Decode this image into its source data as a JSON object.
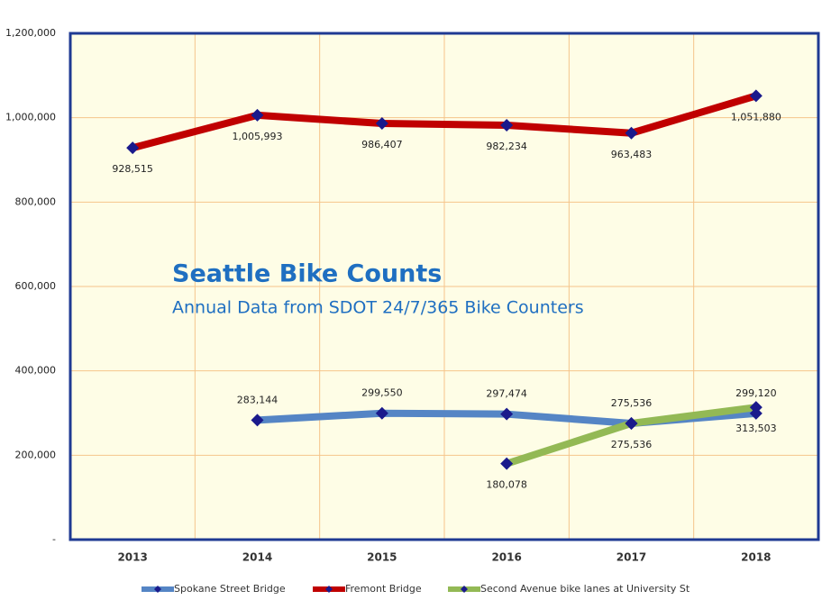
{
  "chart_data": {
    "type": "line",
    "title": "Seattle Bike Counts",
    "subtitle": "Annual Data from SDOT 24/7/365 Bike Counters",
    "categories": [
      "2013",
      "2014",
      "2015",
      "2016",
      "2017",
      "2018"
    ],
    "ylim": [
      0,
      1200000
    ],
    "yticks": [
      {
        "value": 0,
        "label": "-"
      },
      {
        "value": 200000,
        "label": "200,000"
      },
      {
        "value": 400000,
        "label": "400,000"
      },
      {
        "value": 600000,
        "label": "600,000"
      },
      {
        "value": 800000,
        "label": "800,000"
      },
      {
        "value": 1000000,
        "label": "1,000,000"
      },
      {
        "value": 1200000,
        "label": "1,200,000"
      }
    ],
    "grid": true,
    "legend": "bottom",
    "series": [
      {
        "name": "Spokane Street Bridge",
        "color": "#5585c5",
        "values": [
          null,
          283144,
          299550,
          297474,
          275536,
          299120
        ],
        "value_labels": [
          null,
          "283,144",
          "299,550",
          "297,474",
          "275,536",
          "299,120"
        ]
      },
      {
        "name": "Fremont Bridge",
        "color": "#c00000",
        "values": [
          928515,
          1005993,
          986407,
          982234,
          963483,
          1051880
        ],
        "value_labels": [
          "928,515",
          "1,005,993",
          "986,407",
          "982,234",
          "963,483",
          "1,051,880"
        ]
      },
      {
        "name": "Second Avenue bike lanes at University St",
        "color": "#93b955",
        "values": [
          null,
          null,
          null,
          180078,
          275536,
          313503
        ],
        "value_labels": [
          null,
          null,
          null,
          "180,078",
          "275,536",
          "313,503"
        ]
      }
    ]
  }
}
